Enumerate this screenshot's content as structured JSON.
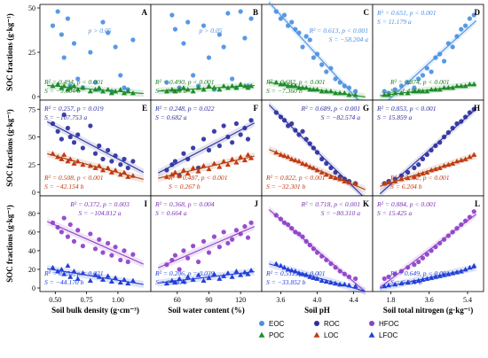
{
  "chart_data": {
    "type": "scatter",
    "ylabel": "SOC fractions (g·kg⁻¹)",
    "rows": [
      {
        "ylim": [
          0,
          50
        ],
        "yticks": [
          0,
          25,
          50
        ],
        "series": [
          "EOC",
          "POC"
        ]
      },
      {
        "ylim": [
          0,
          80
        ],
        "yticks": [
          0,
          25,
          50,
          75
        ],
        "series": [
          "ROC",
          "LOC"
        ]
      },
      {
        "ylim": [
          0,
          95
        ],
        "yticks": [
          0,
          20,
          40,
          60,
          80
        ],
        "series": [
          "HFOC",
          "LFOC"
        ]
      }
    ],
    "columns": [
      {
        "xlabel": "Soil bulk density (g·cm⁻³)",
        "xlim": [
          0.42,
          1.22
        ],
        "xticks": [
          0.5,
          0.75,
          1.0
        ],
        "xtick_labels": [
          "0.50",
          "0.75",
          "1.00"
        ]
      },
      {
        "xlabel": "Soil water content (%)",
        "xlim": [
          40,
          135
        ],
        "xticks": [
          60,
          90,
          120
        ],
        "xtick_labels": [
          "60",
          "90",
          "120"
        ]
      },
      {
        "xlabel": "Soil pH",
        "xlim": [
          3.45,
          4.55
        ],
        "xticks": [
          3.6,
          4.0,
          4.4
        ],
        "xtick_labels": [
          "3.6",
          "4.0",
          "4.4"
        ]
      },
      {
        "xlabel": "Soil total nitrogen (g·kg⁻¹)",
        "xlim": [
          1.2,
          5.9
        ],
        "xticks": [
          1.8,
          3.6,
          5.4
        ],
        "xtick_labels": [
          "1.8",
          "3.6",
          "5.4"
        ]
      }
    ],
    "panels": [
      {
        "letter": "A",
        "row": 0,
        "col": 0,
        "trends": [
          "none",
          "neg"
        ],
        "stats": [
          {
            "series": "EOC",
            "lines": [
              "p > 0.05"
            ],
            "pos": "upper-center"
          },
          {
            "series": "POC",
            "lines": [
              "R² = 0.494, p < 0.001",
              "S = −9.604 b"
            ],
            "pos": "bottom-left"
          }
        ]
      },
      {
        "letter": "B",
        "row": 0,
        "col": 1,
        "trends": [
          "none",
          "pos"
        ],
        "stats": [
          {
            "series": "EOC",
            "lines": [
              "p > 0.05"
            ],
            "pos": "upper-center"
          },
          {
            "series": "POC",
            "lines": [
              "R² = 0.490, p < 0.001",
              "S = 0.061 b"
            ],
            "pos": "bottom-left"
          }
        ]
      },
      {
        "letter": "C",
        "row": 0,
        "col": 2,
        "trends": [
          "neg",
          "neg"
        ],
        "stats": [
          {
            "series": "EOC",
            "lines": [
              "R² = 0.613, p < 0.001",
              "S = −58.204 a"
            ],
            "pos": "upper-right"
          },
          {
            "series": "POC",
            "lines": [
              "R² = 0.682, p < 0.001",
              "S = −7.360 b"
            ],
            "pos": "bottom-left"
          }
        ]
      },
      {
        "letter": "D",
        "row": 0,
        "col": 3,
        "trends": [
          "pos",
          "pos"
        ],
        "stats": [
          {
            "series": "EOC",
            "lines": [
              "R² = 0.651, p < 0.001",
              "S = 11.179 a"
            ],
            "pos": "top-left"
          },
          {
            "series": "POC",
            "lines": [
              "R² = 0.874, p < 0.001",
              "S = 1.414 b"
            ],
            "pos": "bottom-center"
          }
        ]
      },
      {
        "letter": "E",
        "row": 1,
        "col": 0,
        "trends": [
          "neg",
          "neg"
        ],
        "stats": [
          {
            "series": "ROC",
            "lines": [
              "R² = 0.257, p = 0.019",
              "S = −107.753 a"
            ],
            "pos": "top-left"
          },
          {
            "series": "LOC",
            "lines": [
              "R² = 0.508, p < 0.001",
              "S = −42.154 b"
            ],
            "pos": "bottom-left"
          }
        ]
      },
      {
        "letter": "F",
        "row": 1,
        "col": 1,
        "trends": [
          "pos",
          "pos"
        ],
        "stats": [
          {
            "series": "ROC",
            "lines": [
              "R² = 0.248, p = 0.022",
              "S = 0.682 a"
            ],
            "pos": "top-left"
          },
          {
            "series": "LOC",
            "lines": [
              "R² = 0.487, p < 0.001",
              "S = 0.267 b"
            ],
            "pos": "bottom-center"
          }
        ]
      },
      {
        "letter": "G",
        "row": 1,
        "col": 2,
        "trends": [
          "neg",
          "neg"
        ],
        "stats": [
          {
            "series": "ROC",
            "lines": [
              "R² = 0.689, p < 0.001",
              "S = −82.574 a"
            ],
            "pos": "top-right"
          },
          {
            "series": "LOC",
            "lines": [
              "R² = 0.822, p < 0.001",
              "S = −32.301 b"
            ],
            "pos": "bottom-left"
          }
        ]
      },
      {
        "letter": "H",
        "row": 1,
        "col": 3,
        "trends": [
          "pos",
          "pos"
        ],
        "stats": [
          {
            "series": "ROC",
            "lines": [
              "R² = 0.853, p < 0.001",
              "S = 15.859 a"
            ],
            "pos": "top-left"
          },
          {
            "series": "LOC",
            "lines": [
              "R² = 0.922, p < 0.001",
              "S = 6.204 b"
            ],
            "pos": "bottom-center"
          }
        ]
      },
      {
        "letter": "I",
        "row": 2,
        "col": 0,
        "trends": [
          "neg",
          "neg"
        ],
        "stats": [
          {
            "series": "HFOC",
            "lines": [
              "R² = 0.372, p = 0.003",
              "S = −104.812 a"
            ],
            "pos": "top-center"
          },
          {
            "series": "LFOC",
            "lines": [
              "R² = 0.251, p = 0.021",
              "S = −44.170 b"
            ],
            "pos": "bottom-left"
          }
        ]
      },
      {
        "letter": "J",
        "row": 2,
        "col": 1,
        "trends": [
          "pos",
          "pos"
        ],
        "stats": [
          {
            "series": "HFOC",
            "lines": [
              "R² = 0.368, p = 0.004",
              "S = 0.664 a"
            ],
            "pos": "top-left"
          },
          {
            "series": "LFOC",
            "lines": [
              "R² = 0.206, p = 0.039",
              "S = 0.280 b"
            ],
            "pos": "bottom-left"
          }
        ]
      },
      {
        "letter": "K",
        "row": 2,
        "col": 2,
        "trends": [
          "neg",
          "neg"
        ],
        "stats": [
          {
            "series": "HFOC",
            "lines": [
              "R² = 0.718, p < 0.001",
              "S = −80.310 a"
            ],
            "pos": "top-right"
          },
          {
            "series": "LFOC",
            "lines": [
              "R² = 0.512, p < 0.001",
              "S = −33.852 b"
            ],
            "pos": "bottom-left"
          }
        ]
      },
      {
        "letter": "L",
        "row": 2,
        "col": 3,
        "trends": [
          "pos",
          "pos"
        ],
        "stats": [
          {
            "series": "HFOC",
            "lines": [
              "R² = 0.884, p < 0.001",
              "S = 15.425 a"
            ],
            "pos": "top-left"
          },
          {
            "series": "LFOC",
            "lines": [
              "R² = 0.649, p < 0.001",
              "S = 6.501 b"
            ],
            "pos": "bottom-center"
          }
        ]
      }
    ],
    "series_styles": {
      "EOC": {
        "color": "#4a90e2",
        "marker": "circle",
        "stat_color": "#4a90e2",
        "line_color": "#4a90e2"
      },
      "POC": {
        "color": "#1e8c2a",
        "marker": "triangle",
        "stat_color": "#1e7a25",
        "line_color": "#1e8c2a"
      },
      "ROC": {
        "color": "#2b2f9e",
        "marker": "circle",
        "stat_color": "#2b2f9e",
        "line_color": "#2b2f9e"
      },
      "LOC": {
        "color": "#c23a12",
        "marker": "triangle",
        "stat_color": "#c23a12",
        "line_color": "#a0420f"
      },
      "HFOC": {
        "color": "#8e3fc9",
        "marker": "circle",
        "stat_color": "#7a2fb5",
        "line_color": "#8e3fc9"
      },
      "LFOC": {
        "color": "#2040d8",
        "marker": "triangle",
        "stat_color": "#2040d8",
        "line_color": "#2040d8"
      }
    },
    "legend": [
      {
        "series": "EOC",
        "label": "EOC"
      },
      {
        "series": "ROC",
        "label": "ROC"
      },
      {
        "series": "HFOC",
        "label": "HFOC"
      },
      {
        "series": "POC",
        "label": "POC"
      },
      {
        "series": "LOC",
        "label": "LOC"
      },
      {
        "series": "LFOC",
        "label": "LFOC"
      }
    ],
    "legend_placement": "bottom-right",
    "scatter_points": {
      "x": {
        "0": [
          0.48,
          0.52,
          0.55,
          0.57,
          0.6,
          0.62,
          0.65,
          0.68,
          0.72,
          0.78,
          0.82,
          0.85,
          0.88,
          0.92,
          0.95,
          0.98,
          1.02,
          1.05,
          1.08,
          1.12
        ],
        "1": [
          50,
          55,
          58,
          62,
          66,
          70,
          75,
          80,
          85,
          90,
          95,
          100,
          104,
          108,
          112,
          116,
          120,
          124,
          127,
          130
        ],
        "2": [
          3.55,
          3.6,
          3.64,
          3.68,
          3.72,
          3.76,
          3.8,
          3.84,
          3.88,
          3.92,
          3.96,
          4.0,
          4.05,
          4.1,
          4.15,
          4.2,
          4.25,
          4.3,
          4.35,
          4.42
        ],
        "3": [
          1.5,
          1.7,
          2.0,
          2.3,
          2.6,
          2.9,
          3.1,
          3.3,
          3.5,
          3.7,
          3.9,
          4.1,
          4.3,
          4.5,
          4.7,
          4.9,
          5.1,
          5.3,
          5.5,
          5.7
        ]
      },
      "EOC": {
        "0": [
          40,
          48,
          35,
          22,
          44,
          6,
          30,
          10,
          5,
          25,
          8,
          4,
          42,
          36,
          3,
          28,
          12,
          5,
          4,
          32
        ],
        "1": [
          8,
          46,
          38,
          5,
          30,
          42,
          12,
          6,
          40,
          22,
          4,
          35,
          28,
          47,
          10,
          5,
          48,
          33,
          6,
          44
        ],
        "2": [
          48,
          44,
          46,
          40,
          42,
          38,
          36,
          28,
          34,
          32,
          22,
          24,
          18,
          14,
          16,
          10,
          8,
          6,
          5,
          3
        ],
        "3": [
          3,
          2,
          4,
          6,
          8,
          5,
          10,
          12,
          16,
          14,
          22,
          24,
          20,
          30,
          28,
          34,
          38,
          40,
          44,
          46
        ]
      },
      "POC": {
        "0": [
          6,
          7,
          5,
          6,
          4,
          5,
          6,
          4,
          5,
          3,
          4,
          5,
          3,
          4,
          2,
          3,
          4,
          2,
          3,
          2
        ],
        "1": [
          3,
          4,
          3,
          4,
          5,
          4,
          3,
          5,
          4,
          6,
          5,
          4,
          6,
          5,
          6,
          5,
          7,
          6,
          5,
          6
        ],
        "2": [
          8,
          7,
          7,
          6,
          6,
          6,
          5,
          5,
          5,
          4,
          4,
          4,
          3,
          3,
          3,
          2,
          2,
          2,
          1,
          1
        ],
        "3": [
          1,
          1,
          2,
          2,
          2,
          3,
          3,
          3,
          3,
          4,
          4,
          4,
          5,
          5,
          5,
          6,
          6,
          6,
          7,
          7
        ]
      },
      "ROC": {
        "0": [
          62,
          55,
          48,
          70,
          58,
          50,
          45,
          52,
          40,
          60,
          35,
          42,
          30,
          38,
          28,
          33,
          25,
          30,
          22,
          28
        ],
        "1": [
          20,
          25,
          28,
          15,
          35,
          30,
          40,
          22,
          48,
          38,
          55,
          42,
          60,
          50,
          45,
          62,
          52,
          58,
          48,
          65
        ],
        "2": [
          72,
          68,
          65,
          60,
          62,
          56,
          52,
          55,
          48,
          44,
          40,
          36,
          30,
          26,
          22,
          18,
          14,
          12,
          10,
          8
        ],
        "3": [
          8,
          10,
          12,
          15,
          18,
          22,
          25,
          30,
          34,
          38,
          42,
          45,
          50,
          54,
          58,
          62,
          64,
          68,
          72,
          75
        ]
      },
      "LOC": {
        "0": [
          35,
          32,
          30,
          34,
          28,
          30,
          26,
          28,
          25,
          24,
          22,
          24,
          20,
          22,
          18,
          20,
          16,
          18,
          14,
          15
        ],
        "1": [
          14,
          16,
          18,
          15,
          20,
          17,
          22,
          19,
          24,
          21,
          26,
          23,
          28,
          25,
          30,
          27,
          32,
          29,
          34,
          31
        ],
        "2": [
          36,
          34,
          33,
          32,
          30,
          29,
          28,
          26,
          25,
          23,
          22,
          20,
          18,
          16,
          14,
          13,
          12,
          10,
          9,
          8
        ],
        "3": [
          8,
          9,
          10,
          12,
          13,
          14,
          16,
          17,
          18,
          20,
          21,
          22,
          24,
          25,
          26,
          28,
          29,
          30,
          32,
          34
        ]
      },
      "HFOC": {
        "0": [
          70,
          65,
          60,
          75,
          55,
          68,
          50,
          62,
          45,
          58,
          42,
          52,
          38,
          48,
          35,
          44,
          30,
          40,
          28,
          36
        ],
        "1": [
          25,
          30,
          35,
          20,
          40,
          32,
          45,
          28,
          50,
          38,
          55,
          44,
          60,
          48,
          52,
          62,
          58,
          66,
          54,
          70
        ],
        "2": [
          78,
          74,
          70,
          68,
          64,
          60,
          58,
          55,
          50,
          46,
          42,
          38,
          34,
          30,
          26,
          22,
          18,
          15,
          12,
          10
        ],
        "3": [
          10,
          12,
          15,
          18,
          22,
          25,
          28,
          32,
          36,
          40,
          44,
          48,
          52,
          56,
          60,
          64,
          68,
          72,
          76,
          82
        ]
      },
      "LFOC": {
        "0": [
          22,
          18,
          20,
          15,
          24,
          12,
          18,
          10,
          16,
          8,
          14,
          12,
          9,
          13,
          7,
          11,
          6,
          9,
          5,
          8
        ],
        "1": [
          5,
          8,
          6,
          10,
          7,
          12,
          9,
          14,
          8,
          11,
          15,
          10,
          13,
          16,
          12,
          18,
          14,
          17,
          15,
          19
        ],
        "2": [
          26,
          24,
          22,
          20,
          19,
          18,
          16,
          15,
          14,
          12,
          11,
          10,
          8,
          7,
          6,
          5,
          4,
          4,
          3,
          2
        ],
        "3": [
          2,
          3,
          4,
          5,
          6,
          7,
          8,
          9,
          10,
          11,
          12,
          13,
          14,
          15,
          16,
          17,
          18,
          20,
          22,
          24
        ]
      }
    }
  }
}
